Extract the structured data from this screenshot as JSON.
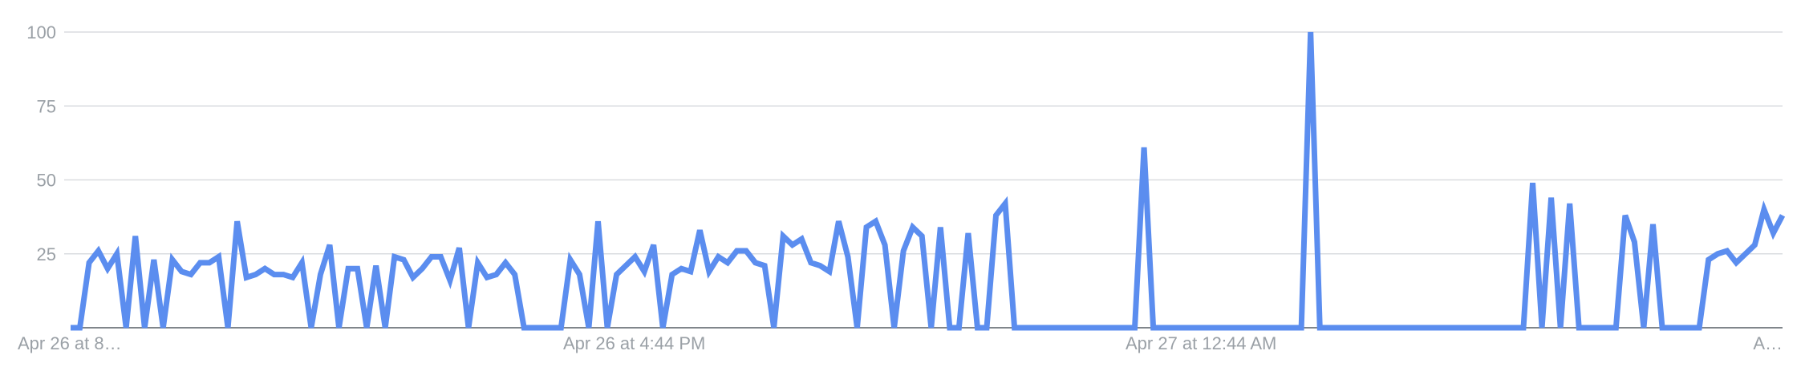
{
  "chart_data": {
    "type": "line",
    "title": "",
    "xlabel": "",
    "ylabel": "",
    "ylim": [
      0,
      100
    ],
    "y_ticks": [
      25,
      50,
      75,
      100
    ],
    "x_tick_labels": [
      "Apr 26 at 8…",
      "Apr 26 at 4:44 PM",
      "Apr 27 at 12:44 AM",
      "A…"
    ],
    "grid": true,
    "legend": "none",
    "colors": {
      "line": "#5b8def",
      "grid": "#dadce0",
      "axis": "#80868b",
      "tick_text": "#9aa0a6"
    },
    "series": [
      {
        "values": [
          0,
          0,
          22,
          26,
          20,
          25,
          0,
          31,
          0,
          23,
          0,
          23,
          19,
          18,
          22,
          22,
          24,
          0,
          36,
          17,
          18,
          20,
          18,
          18,
          17,
          22,
          0,
          18,
          28,
          0,
          20,
          20,
          0,
          21,
          0,
          24,
          23,
          17,
          20,
          24,
          24,
          16,
          27,
          0,
          22,
          17,
          18,
          22,
          18,
          0,
          0,
          0,
          0,
          0,
          23,
          18,
          0,
          36,
          0,
          18,
          21,
          24,
          19,
          28,
          0,
          18,
          20,
          19,
          33,
          19,
          24,
          22,
          26,
          26,
          22,
          21,
          0,
          31,
          28,
          30,
          22,
          21,
          19,
          36,
          24,
          0,
          34,
          36,
          28,
          0,
          26,
          34,
          31,
          0,
          34,
          0,
          0,
          32,
          0,
          0,
          38,
          42,
          0,
          0,
          0,
          0,
          0,
          0,
          0,
          0,
          0,
          0,
          0,
          0,
          0,
          0,
          61,
          0,
          0,
          0,
          0,
          0,
          0,
          0,
          0,
          0,
          0,
          0,
          0,
          0,
          0,
          0,
          0,
          0,
          100,
          0,
          0,
          0,
          0,
          0,
          0,
          0,
          0,
          0,
          0,
          0,
          0,
          0,
          0,
          0,
          0,
          0,
          0,
          0,
          0,
          0,
          0,
          0,
          49,
          0,
          44,
          0,
          42,
          0,
          0,
          0,
          0,
          0,
          38,
          29,
          0,
          35,
          0,
          0,
          0,
          0,
          0,
          23,
          25,
          26,
          22,
          25,
          28,
          40,
          32,
          38
        ]
      }
    ]
  }
}
